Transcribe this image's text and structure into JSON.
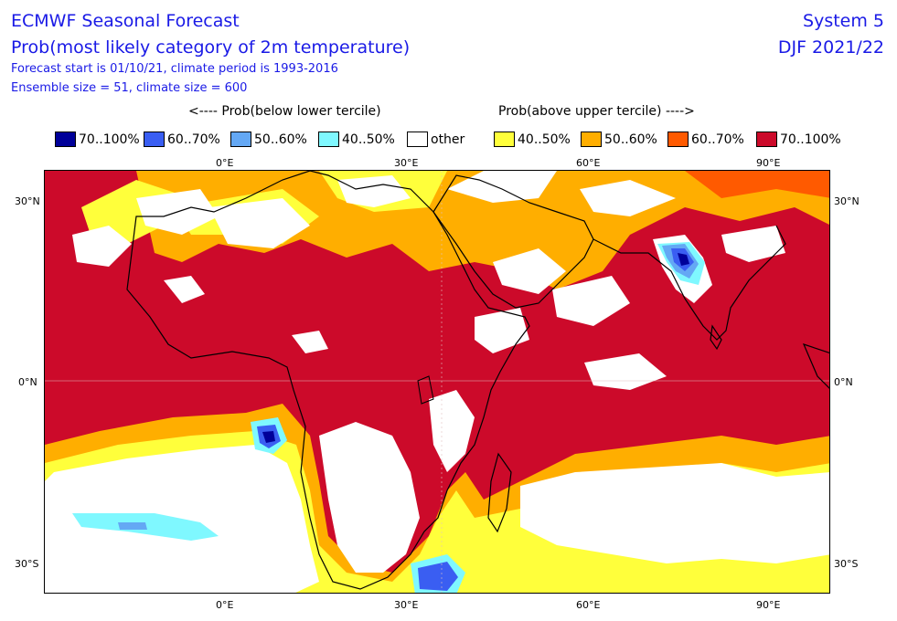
{
  "header": {
    "title": "ECMWF Seasonal Forecast",
    "subtitle": "Prob(most likely category of 2m temperature)",
    "line3": "Forecast start is 01/10/21, climate period is 1993-2016",
    "line4": "Ensemble size = 51, climate size = 600",
    "system": "System 5",
    "season": "DJF 2021/22"
  },
  "legend": {
    "below_title": "<---- Prob(below lower tercile)",
    "above_title": "Prob(above upper tercile) ---->",
    "items": [
      {
        "label": "70..100%",
        "color": "#000099"
      },
      {
        "label": "60..70%",
        "color": "#3a5ef2"
      },
      {
        "label": "50..60%",
        "color": "#64a8f4"
      },
      {
        "label": "40..50%",
        "color": "#7ff8ff"
      },
      {
        "label": "other",
        "color": "#ffffff"
      },
      {
        "label": "40..50%",
        "color": "#ffff3b"
      },
      {
        "label": "50..60%",
        "color": "#ffae00"
      },
      {
        "label": "60..70%",
        "color": "#ff5a00"
      },
      {
        "label": "70..100%",
        "color": "#cc0a2a"
      }
    ]
  },
  "axes": {
    "top_lon": [
      "0°E",
      "30°E",
      "60°E",
      "90°E"
    ],
    "bottom_lon": [
      "0°E",
      "30°E",
      "60°E",
      "90°E"
    ],
    "left_lat": [
      "30°N",
      "0°N",
      "30°S"
    ],
    "right_lat": [
      "30°N",
      "0°N",
      "30°S"
    ]
  }
}
